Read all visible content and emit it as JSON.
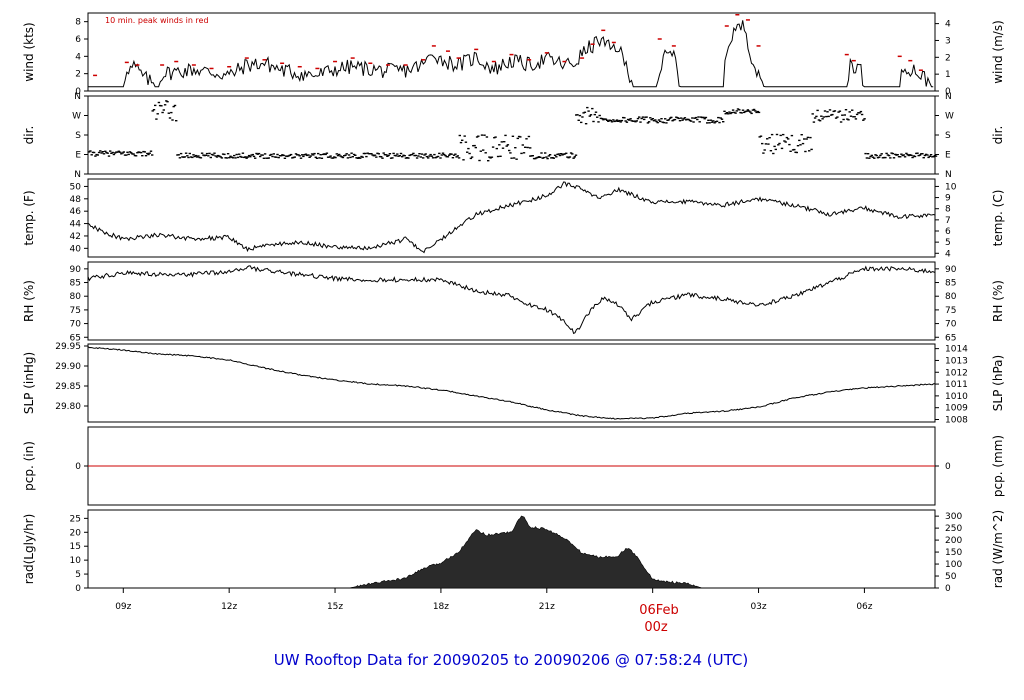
{
  "colors": {
    "line": "#000000",
    "peak": "#cc0000",
    "precip": "#cc0000",
    "radiation": "#2a2a2a",
    "title": "#0000cc",
    "date_label": "#cc0000"
  },
  "figure_title": "UW Rooftop Data for 20090205  to  20090206 @ 07:58:24  (UTC)",
  "x_axis": {
    "range_hours": [
      8,
      32
    ],
    "tick_hours": [
      9,
      12,
      15,
      18,
      21,
      24,
      27,
      30
    ],
    "tick_labels": [
      "09z",
      "12z",
      "15z",
      "18z",
      "21z",
      "00z",
      "03z",
      "06z"
    ],
    "date_label": "06Feb",
    "date_tick_label": "00z"
  },
  "chart_data": [
    {
      "id": "wind",
      "type": "line",
      "ylabel": "wind (kts)",
      "ylabel_right": "wind (m/s)",
      "ylim": [
        0,
        9
      ],
      "yticks": [
        0,
        2,
        4,
        6,
        8
      ],
      "yticks_right": [
        0,
        1,
        2,
        3,
        4
      ],
      "right_factor": 1.94384,
      "annotation": "10 min. peak winds in red",
      "x": [
        8,
        9.0,
        9.1,
        9.2,
        9.3,
        9.6,
        10.0,
        10.1,
        11.0,
        12.0,
        12.5,
        13.0,
        13.5,
        14.0,
        14.5,
        15.0,
        15.5,
        16.0,
        16.5,
        17.0,
        17.5,
        17.8,
        18.0,
        18.5,
        19.0,
        19.5,
        20.0,
        20.5,
        21.0,
        21.5,
        21.8,
        22.0,
        22.5,
        22.8,
        23.0,
        23.5,
        24.0,
        24.1,
        24.3,
        24.6,
        24.8,
        25.0,
        25.5,
        26.0,
        26.1,
        26.3,
        26.6,
        26.8,
        27.0,
        27.2,
        28.0,
        29.0,
        29.5,
        29.6,
        29.9,
        30.0,
        31.0,
        31.1,
        31.4,
        31.6,
        32.0
      ],
      "y": [
        0.5,
        0.5,
        2.8,
        2.5,
        2.9,
        1.5,
        0.5,
        2.0,
        2.5,
        1.8,
        3.0,
        3.2,
        2.4,
        2.0,
        1.8,
        2.5,
        2.8,
        2.5,
        2.3,
        2.4,
        3.0,
        4.5,
        3.6,
        3.0,
        3.9,
        2.5,
        3.5,
        3.0,
        3.7,
        3.0,
        3.2,
        4.3,
        5.9,
        4.8,
        5.2,
        0.5,
        0.5,
        0.5,
        3.8,
        4.2,
        0.5,
        0.5,
        0.5,
        0.5,
        4.8,
        7.0,
        7.5,
        4.0,
        1.5,
        0.5,
        0.5,
        0.5,
        0.5,
        3.2,
        2.5,
        0.5,
        0.5,
        2.8,
        2.5,
        1.8,
        0.5
      ],
      "peaks_x": [
        8.2,
        9.1,
        9.4,
        10.1,
        10.5,
        11.0,
        11.5,
        12.0,
        12.5,
        13.0,
        13.5,
        14.0,
        14.5,
        15.0,
        15.5,
        16.0,
        16.5,
        17.0,
        17.5,
        17.8,
        18.2,
        18.5,
        19.0,
        19.5,
        20.0,
        20.5,
        21.0,
        21.5,
        22.0,
        22.3,
        22.6,
        22.9,
        24.2,
        24.6,
        26.1,
        26.4,
        26.7,
        27.0,
        29.5,
        29.7,
        31.0,
        31.3,
        31.6
      ],
      "peaks_y": [
        1.8,
        3.3,
        3.0,
        3.0,
        3.4,
        3.0,
        2.6,
        2.8,
        3.8,
        3.6,
        3.2,
        2.8,
        2.6,
        3.4,
        3.8,
        3.2,
        3.0,
        3.0,
        3.6,
        5.2,
        4.6,
        3.8,
        4.8,
        3.4,
        4.2,
        3.6,
        4.4,
        3.4,
        3.8,
        5.4,
        7.0,
        5.6,
        6.0,
        5.2,
        7.5,
        8.8,
        8.2,
        5.2,
        4.2,
        3.5,
        4.0,
        3.5,
        2.4
      ]
    },
    {
      "id": "direction",
      "type": "scatter",
      "ylabel": "dir.",
      "ylabel_right": "dir.",
      "ylim": [
        0,
        360
      ],
      "ytick_values": [
        0,
        90,
        180,
        270,
        360
      ],
      "ytick_labels": [
        "N",
        "E",
        "S",
        "W",
        "N"
      ],
      "segments": [
        {
          "x": [
            8.0,
            9.8
          ],
          "base": 95,
          "spread": 12
        },
        {
          "x": [
            9.8,
            10.5
          ],
          "base": 290,
          "spread": 50
        },
        {
          "x": [
            10.5,
            18.5
          ],
          "base": 85,
          "spread": 12
        },
        {
          "x": [
            18.5,
            20.5
          ],
          "base": 120,
          "spread": 60
        },
        {
          "x": [
            20.5,
            21.8
          ],
          "base": 85,
          "spread": 14
        },
        {
          "x": [
            21.8,
            22.5
          ],
          "base": 270,
          "spread": 40
        },
        {
          "x": [
            22.5,
            26.0
          ],
          "base": 250,
          "spread": 14
        },
        {
          "x": [
            26.0,
            27.0
          ],
          "base": 290,
          "spread": 12
        },
        {
          "x": [
            27.0,
            28.5
          ],
          "base": 140,
          "spread": 45
        },
        {
          "x": [
            28.5,
            30.0
          ],
          "base": 270,
          "spread": 30
        },
        {
          "x": [
            30.0,
            32.0
          ],
          "base": 85,
          "spread": 12
        }
      ]
    },
    {
      "id": "temperature",
      "type": "line",
      "ylabel": "temp. (F)",
      "ylabel_right": "temp. (C)",
      "ylim": [
        38.6,
        51.2
      ],
      "yticks": [
        40,
        42,
        44,
        46,
        48,
        50
      ],
      "yticks_right": [
        4,
        5,
        6,
        7,
        8,
        9,
        10
      ],
      "right_scale": "celsius",
      "x": [
        8.0,
        8.5,
        9.0,
        10.0,
        11.0,
        12.0,
        12.5,
        13.0,
        14.0,
        15.0,
        16.0,
        17.0,
        17.5,
        18.0,
        18.5,
        19.0,
        20.0,
        21.0,
        21.5,
        22.0,
        22.5,
        23.0,
        24.0,
        25.0,
        26.0,
        27.0,
        28.0,
        29.0,
        30.0,
        31.0,
        32.0
      ],
      "y": [
        43.8,
        42.5,
        41.5,
        42.2,
        41.5,
        41.8,
        39.8,
        40.5,
        41.0,
        40.2,
        40.0,
        41.5,
        39.5,
        41.5,
        43.5,
        45.5,
        47.0,
        48.5,
        50.5,
        49.5,
        48.0,
        49.5,
        47.5,
        47.5,
        47.0,
        48.0,
        47.0,
        45.5,
        46.5,
        45.0,
        45.5
      ],
      "noise": 0.35
    },
    {
      "id": "rh",
      "type": "line",
      "ylabel": "RH (%)",
      "ylabel_right": "RH (%)",
      "ylim": [
        64,
        92.5
      ],
      "yticks": [
        65,
        70,
        75,
        80,
        85,
        90
      ],
      "yticks_right": [
        65,
        70,
        75,
        80,
        85,
        90
      ],
      "x": [
        8.0,
        9.0,
        10.0,
        11.0,
        12.0,
        12.5,
        13.0,
        14.0,
        15.0,
        16.0,
        17.0,
        18.0,
        19.0,
        20.0,
        20.5,
        21.0,
        21.5,
        21.8,
        22.2,
        22.6,
        23.0,
        23.4,
        24.0,
        25.0,
        26.0,
        27.0,
        28.0,
        29.0,
        30.0,
        31.0,
        32.0
      ],
      "y": [
        86.5,
        88.5,
        88.0,
        88.0,
        89.0,
        90.5,
        89.5,
        88.0,
        86.5,
        86.0,
        86.0,
        86.0,
        82.0,
        80.0,
        77.0,
        75.0,
        71.0,
        66.5,
        74.0,
        79.5,
        77.0,
        71.5,
        78.0,
        80.5,
        79.0,
        76.5,
        80.0,
        85.0,
        90.0,
        90.0,
        89.0
      ],
      "noise": 0.8
    },
    {
      "id": "pressure",
      "type": "line",
      "ylabel": "SLP (inHg)",
      "ylabel_right": "SLP (hPa)",
      "ylim": [
        29.76,
        29.955
      ],
      "yticks": [
        29.8,
        29.85,
        29.9,
        29.95
      ],
      "ytick_labels": [
        "29.80",
        "29.85",
        "29.90",
        "29.95"
      ],
      "yticks_right": [
        1008,
        1009,
        1010,
        1011,
        1012,
        1013,
        1014
      ],
      "right_scale": "hpa",
      "x": [
        8.0,
        9.0,
        10.0,
        11.0,
        12.0,
        13.0,
        14.0,
        15.0,
        16.0,
        17.0,
        17.5,
        18.0,
        18.5,
        19.0,
        20.0,
        21.0,
        22.0,
        23.0,
        24.0,
        25.0,
        26.0,
        27.0,
        28.0,
        29.0,
        30.0,
        31.0,
        32.0
      ],
      "y": [
        29.947,
        29.94,
        29.93,
        29.925,
        29.915,
        29.895,
        29.878,
        29.865,
        29.855,
        29.85,
        29.845,
        29.84,
        29.833,
        29.825,
        29.81,
        29.79,
        29.775,
        29.768,
        29.77,
        29.782,
        29.787,
        29.797,
        29.82,
        29.835,
        29.845,
        29.85,
        29.855
      ],
      "noise": 0.0015
    },
    {
      "id": "precipitation",
      "type": "line",
      "ylabel": "pcp. (in)",
      "ylabel_right": "pcp. (mm)",
      "ylim": [
        -1,
        1
      ],
      "yticks": [
        0
      ],
      "yticks_right": [
        0
      ],
      "x": [
        8,
        32
      ],
      "y": [
        0,
        0
      ]
    },
    {
      "id": "radiation",
      "type": "area",
      "ylabel": "rad(Lgly/hr)",
      "ylabel_right": "rad (W/m^2)",
      "ylim": [
        0,
        28
      ],
      "yticks": [
        0,
        5,
        10,
        15,
        20,
        25
      ],
      "yticks_right": [
        0,
        50,
        100,
        150,
        200,
        250,
        300
      ],
      "right_factor": 11.63,
      "x": [
        8.0,
        15.4,
        16.0,
        17.0,
        17.5,
        18.0,
        18.5,
        19.0,
        19.3,
        19.6,
        20.0,
        20.3,
        20.5,
        21.0,
        21.5,
        22.0,
        22.5,
        23.0,
        23.3,
        23.6,
        24.0,
        24.6,
        25.0,
        25.4,
        32.0
      ],
      "y": [
        0,
        0,
        1.5,
        3.5,
        7.0,
        9.0,
        13.0,
        21.0,
        19.0,
        19.5,
        20.0,
        26.5,
        22.0,
        21.0,
        18.0,
        12.5,
        11.0,
        11.5,
        14.5,
        10.5,
        3.0,
        2.0,
        1.5,
        0,
        0
      ]
    }
  ]
}
